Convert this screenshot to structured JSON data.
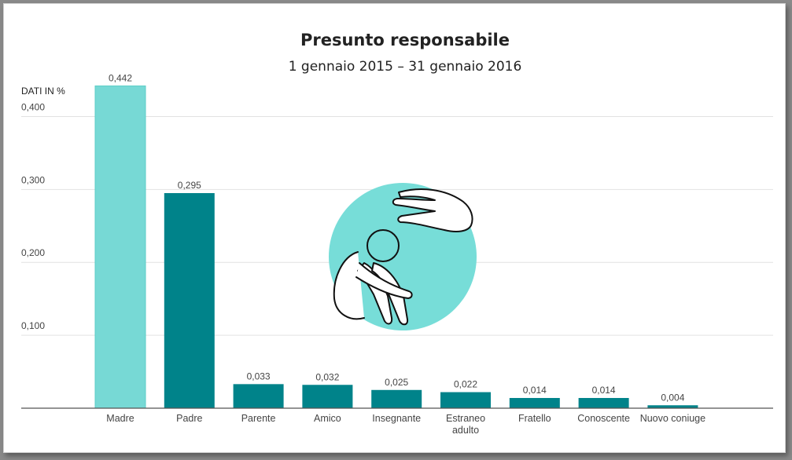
{
  "chart_data": {
    "type": "bar",
    "title": "Presunto responsabile",
    "subtitle": "1 gennaio 2015 – 31 gennaio 2016",
    "ylabel": "DATI IN %",
    "ylim": [
      0,
      0.45
    ],
    "yticks": [
      {
        "value": 0.1,
        "label": "0,100"
      },
      {
        "value": 0.2,
        "label": "0,200"
      },
      {
        "value": 0.3,
        "label": "0,300"
      },
      {
        "value": 0.4,
        "label": "0,400"
      }
    ],
    "grid": true,
    "categories": [
      {
        "lines": [
          "Madre"
        ]
      },
      {
        "lines": [
          "Padre"
        ]
      },
      {
        "lines": [
          "Parente"
        ]
      },
      {
        "lines": [
          "Amico"
        ]
      },
      {
        "lines": [
          "Insegnante"
        ]
      },
      {
        "lines": [
          "Estraneo",
          "adulto"
        ]
      },
      {
        "lines": [
          "Fratello"
        ]
      },
      {
        "lines": [
          "Conoscente"
        ]
      },
      {
        "lines": [
          "Nuovo coniuge"
        ]
      }
    ],
    "values": [
      0.442,
      0.295,
      0.033,
      0.032,
      0.025,
      0.022,
      0.014,
      0.014,
      0.004
    ],
    "value_labels": [
      "0,442",
      "0,295",
      "0,033",
      "0,032",
      "0,025",
      "0,022",
      "0,014",
      "0,014",
      "0,004"
    ],
    "colors": {
      "highlight_bar": "#77d9d5",
      "highlight_stroke": "#5ccdc8",
      "bar": "#00838a",
      "illustration_circle": "#77ddd8",
      "grid": "#e2e2e2",
      "axis": "#555555"
    },
    "highlight_index": 0,
    "illustration": "child-hugging-knees-under-hand-icon"
  }
}
